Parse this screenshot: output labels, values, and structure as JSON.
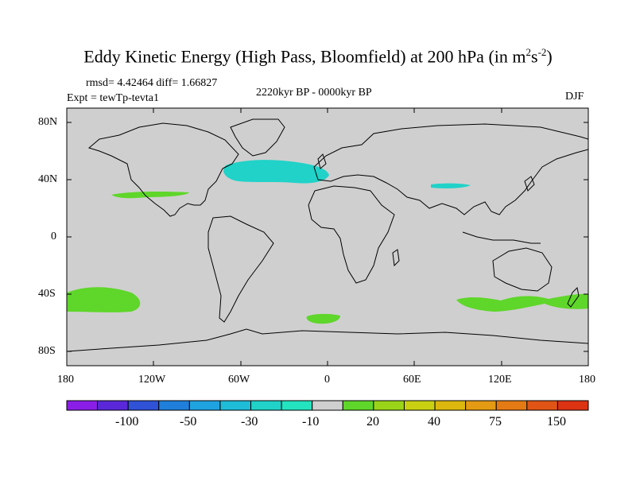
{
  "title": {
    "main": "Eddy Kinetic Energy (High Pass, Bloomfield) at 200 hPa (in m",
    "exp1": "2",
    "mid": "s",
    "exp2": "-2",
    "end": ")"
  },
  "header": {
    "stats": "rmsd= 4.42464 diff= 1.66827",
    "experiment": "Expt = tewTp-tevta1",
    "period": "2220kyr BP - 0000kyr BP",
    "season": "DJF"
  },
  "axes": {
    "y_labels": [
      "80N",
      "40N",
      "0",
      "40S",
      "80S"
    ],
    "x_labels": [
      "180",
      "120W",
      "60W",
      "0",
      "60E",
      "120E",
      "180"
    ]
  },
  "colorbar": {
    "colors": [
      "#8a1ee6",
      "#5a28d9",
      "#2f52d6",
      "#1f7fdb",
      "#1fa2e0",
      "#1fbcd8",
      "#20d2c8",
      "#24e3bf",
      "#cfcfcf",
      "#5fd62a",
      "#9ad418",
      "#c9d011",
      "#dcb80e",
      "#e49a12",
      "#e47a14",
      "#e05516",
      "#dc3312"
    ],
    "labels": [
      "-100",
      "-50",
      "-30",
      "-10",
      "20",
      "40",
      "75",
      "150"
    ]
  },
  "chart_data": {
    "type": "heatmap",
    "projection": "cylindrical equidistant",
    "lon_range": [
      -180,
      180
    ],
    "lat_range": [
      -90,
      90
    ],
    "background": "#cfcfcf",
    "regions": [
      {
        "name": "north-atlantic-negative",
        "level": "-10",
        "color": "#20d2c8",
        "lon": [
          -70,
          0
        ],
        "lat": [
          30,
          50
        ]
      },
      {
        "name": "central-asia-negative",
        "level": "-10",
        "color": "#20d2c8",
        "lon": [
          75,
          100
        ],
        "lat": [
          33,
          38
        ]
      },
      {
        "name": "north-pacific-positive",
        "level": "20",
        "color": "#5fd62a",
        "lon": [
          -150,
          -95
        ],
        "lat": [
          30,
          35
        ]
      },
      {
        "name": "south-pacific-positive",
        "level": "20",
        "color": "#5fd62a",
        "lon": [
          -180,
          -130
        ],
        "lat": [
          -55,
          -35
        ]
      },
      {
        "name": "south-atlantic-positive",
        "level": "20",
        "color": "#5fd62a",
        "lon": [
          -15,
          10
        ],
        "lat": [
          -62,
          -55
        ]
      },
      {
        "name": "southern-indian-ocean-positive",
        "level": "20",
        "color": "#5fd62a",
        "lon": [
          90,
          180
        ],
        "lat": [
          -50,
          -38
        ]
      }
    ]
  }
}
